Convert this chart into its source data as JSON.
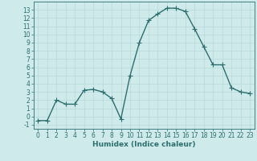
{
  "x": [
    0,
    1,
    2,
    3,
    4,
    5,
    6,
    7,
    8,
    9,
    10,
    11,
    12,
    13,
    14,
    15,
    16,
    17,
    18,
    19,
    20,
    21,
    22,
    23
  ],
  "y": [
    -0.5,
    -0.5,
    2.0,
    1.5,
    1.5,
    3.2,
    3.3,
    3.0,
    2.2,
    -0.3,
    5.0,
    9.0,
    11.7,
    12.5,
    13.2,
    13.2,
    12.8,
    10.7,
    8.5,
    6.3,
    6.3,
    3.5,
    3.0,
    2.8
  ],
  "line_color": "#2d6e6e",
  "marker": "+",
  "markersize": 4,
  "linewidth": 1.0,
  "bg_color": "#ceeaea",
  "grid_color": "#b8d8d8",
  "xlabel": "Humidex (Indice chaleur)",
  "xlim": [
    -0.5,
    23.5
  ],
  "ylim": [
    -1.5,
    14.0
  ],
  "yticks": [
    -1,
    0,
    1,
    2,
    3,
    4,
    5,
    6,
    7,
    8,
    9,
    10,
    11,
    12,
    13
  ],
  "xticks": [
    0,
    1,
    2,
    3,
    4,
    5,
    6,
    7,
    8,
    9,
    10,
    11,
    12,
    13,
    14,
    15,
    16,
    17,
    18,
    19,
    20,
    21,
    22,
    23
  ],
  "xlabel_fontsize": 6.5,
  "tick_fontsize": 5.5
}
